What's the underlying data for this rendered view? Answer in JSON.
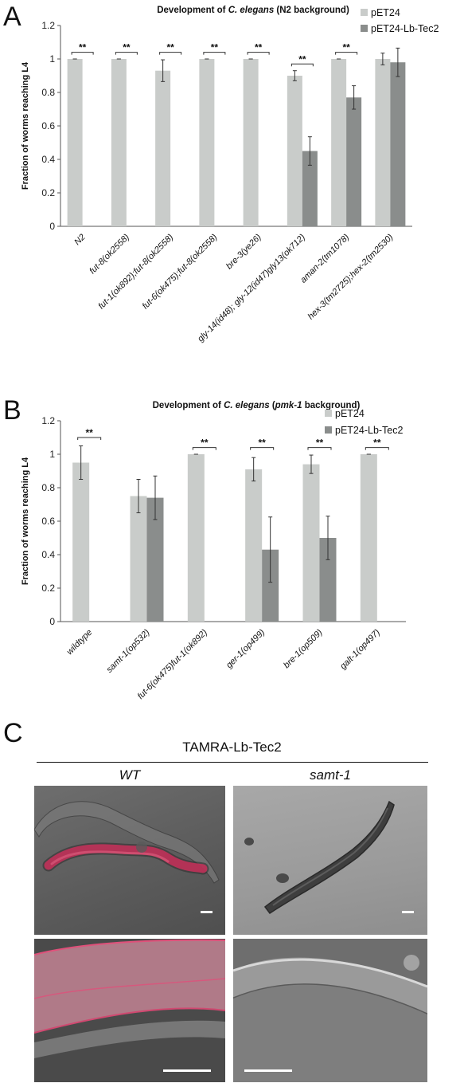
{
  "panels": {
    "A": "A",
    "B": "B",
    "C": "C"
  },
  "colors": {
    "pET24": "#c9ccca",
    "pET24_Lb_Tec2": "#8a8d8c",
    "axis": "#555555",
    "wt_fluorescence": "#c8305a"
  },
  "chart_data": [
    {
      "type": "bar",
      "panel": "A",
      "title_parts": [
        "Development of ",
        "C. elegans",
        " (N2 background)"
      ],
      "ylabel": "Fraction of worms reaching L4",
      "xlabel": "",
      "ylim": [
        0,
        1.2
      ],
      "yticks": [
        "0",
        "0.2",
        "0.4",
        "0.6",
        "0.8",
        "1",
        "1.2"
      ],
      "legend_position": "top-right",
      "grid": false,
      "categories": [
        "N2",
        "fut-8(ok2558)",
        "fut-1(ok892);fut-8(ok2558)",
        "fut-6(ok475);fut-8(ok2558)",
        "bre-3(ye26)",
        "gly-14(id48); gly-12(id47)gly13(ok712)",
        "aman-2(tm1078)",
        "hex-3(tm2725);hex-2(tm2530)"
      ],
      "series": [
        {
          "name": "pET24",
          "values": [
            1.0,
            1.0,
            0.93,
            1.0,
            1.0,
            0.9,
            1.0,
            1.0
          ],
          "errors": [
            0.0,
            0.0,
            0.065,
            0.0,
            0.0,
            0.03,
            0.0,
            0.035
          ]
        },
        {
          "name": "pET24-Lb-Tec2",
          "values": [
            0.0,
            0.0,
            0.0,
            0.0,
            0.0,
            0.45,
            0.77,
            0.98
          ],
          "errors": [
            0.0,
            0.0,
            0.0,
            0.0,
            0.0,
            0.085,
            0.07,
            0.085
          ]
        }
      ],
      "significance": [
        {
          "category": 0,
          "label": "**",
          "y": 1.04
        },
        {
          "category": 1,
          "label": "**",
          "y": 1.04
        },
        {
          "category": 2,
          "label": "**",
          "y": 1.04
        },
        {
          "category": 3,
          "label": "**",
          "y": 1.04
        },
        {
          "category": 4,
          "label": "**",
          "y": 1.04
        },
        {
          "category": 5,
          "label": "**",
          "y": 0.97
        },
        {
          "category": 6,
          "label": "**",
          "y": 1.04
        }
      ]
    },
    {
      "type": "bar",
      "panel": "B",
      "title_parts": [
        "Development of ",
        "C. elegans",
        " (",
        "pmk-1",
        " background)"
      ],
      "ylabel": "Fraction of worms reaching L4",
      "xlabel": "",
      "ylim": [
        0,
        1.2
      ],
      "yticks": [
        "0",
        "0.2",
        "0.4",
        "0.6",
        "0.8",
        "1",
        "1.2"
      ],
      "legend_position": "top-right",
      "grid": false,
      "categories": [
        "wildtype",
        "samt-1(op532)",
        "fut-6(ok475)fut-1(ok892)",
        "ger-1(op499)",
        "bre-1(op509)",
        "galt-1(op497)"
      ],
      "series": [
        {
          "name": "pET24",
          "values": [
            0.95,
            0.75,
            1.0,
            0.91,
            0.94,
            1.0
          ],
          "errors": [
            0.1,
            0.1,
            0.0,
            0.07,
            0.055,
            0.0
          ]
        },
        {
          "name": "pET24-Lb-Tec2",
          "values": [
            0.0,
            0.74,
            0.0,
            0.43,
            0.5,
            0.0
          ],
          "errors": [
            0.0,
            0.13,
            0.0,
            0.195,
            0.13,
            0.0
          ]
        }
      ],
      "significance": [
        {
          "category": 0,
          "label": "**",
          "y": 1.1
        },
        {
          "category": 2,
          "label": "**",
          "y": 1.04
        },
        {
          "category": 3,
          "label": "**",
          "y": 1.04
        },
        {
          "category": 4,
          "label": "**",
          "y": 1.04
        },
        {
          "category": 5,
          "label": "**",
          "y": 1.04
        }
      ]
    }
  ],
  "micrographs": {
    "title": "TAMRA-Lb-Tec2",
    "columns": [
      "WT",
      "samt-1"
    ]
  }
}
